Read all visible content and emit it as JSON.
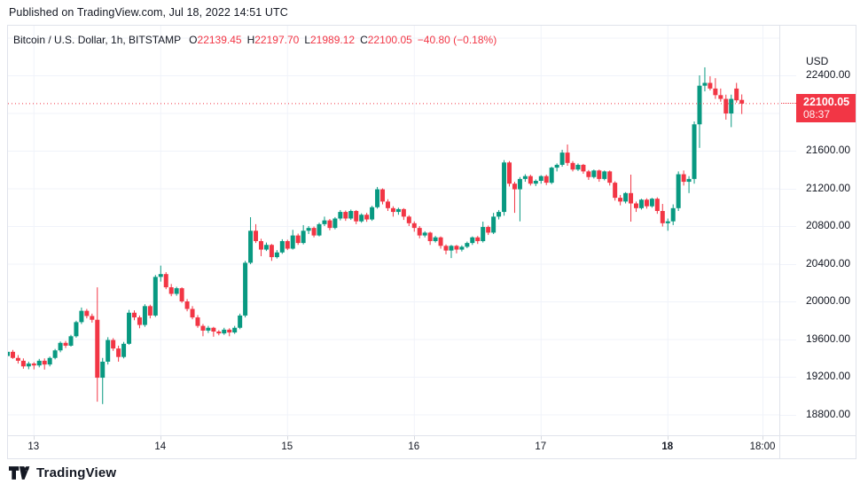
{
  "published_bar": {
    "text": "Published on TradingView.com, Jul 18, 2022 14:51 UTC"
  },
  "legend": {
    "symbol_title": "Bitcoin / U.S. Dollar, 1h, BITSTAMP",
    "o_label": "O",
    "o_value": "22139.45",
    "h_label": "H",
    "h_value": "22197.70",
    "l_label": "L",
    "l_value": "21989.12",
    "c_label": "C",
    "c_value": "22100.05",
    "change": "−40.80 (−0.18%)"
  },
  "price_axis": {
    "currency_label": "USD",
    "tick_labels": [
      "22400.00",
      "21600.00",
      "21200.00",
      "20800.00",
      "20400.00",
      "20000.00",
      "19600.00",
      "19200.00",
      "18800.00"
    ],
    "tick_prices": [
      22400,
      21600,
      21200,
      20800,
      20400,
      20000,
      19600,
      19200,
      18800
    ],
    "badge": {
      "price": "22100.05",
      "countdown": "08:37",
      "value": 22100.05
    }
  },
  "time_axis": {
    "ticks": [
      {
        "label": "13",
        "index": 5,
        "bold": false
      },
      {
        "label": "14",
        "index": 29,
        "bold": false
      },
      {
        "label": "15",
        "index": 53,
        "bold": false
      },
      {
        "label": "16",
        "index": 77,
        "bold": false
      },
      {
        "label": "17",
        "index": 101,
        "bold": false
      },
      {
        "label": "18",
        "index": 125,
        "bold": true
      },
      {
        "label": "18:00",
        "index": 143,
        "bold": false
      }
    ]
  },
  "logo": {
    "text": "TradingView"
  },
  "colors": {
    "up": "#089981",
    "down": "#f23645",
    "grid": "#f0f3fa",
    "border": "#e0e3eb",
    "text": "#131722",
    "badge_bg": "#f23645",
    "price_line": "#f23645"
  },
  "chart_data": {
    "type": "candlestick",
    "title": "Bitcoin / U.S. Dollar",
    "interval": "1h",
    "exchange": "BITSTAMP",
    "currency": "USD",
    "x_start": "Jul 12 2022 19:00 UTC",
    "x_end": "Jul 18 2022 14:00 UTC",
    "ylim": [
      18589,
      22930
    ],
    "grid_prices": [
      22800,
      22400,
      22000,
      21600,
      21200,
      20800,
      20400,
      20000,
      19600,
      19200,
      18800
    ],
    "last_price": 22100.05,
    "candles": [
      [
        19420,
        19480,
        19390,
        19465
      ],
      [
        19465,
        19485,
        19390,
        19400
      ],
      [
        19400,
        19430,
        19340,
        19370
      ],
      [
        19370,
        19395,
        19285,
        19310
      ],
      [
        19310,
        19360,
        19280,
        19340
      ],
      [
        19340,
        19355,
        19278,
        19320
      ],
      [
        19320,
        19390,
        19300,
        19370
      ],
      [
        19370,
        19395,
        19276,
        19330
      ],
      [
        19330,
        19415,
        19310,
        19400
      ],
      [
        19400,
        19495,
        19385,
        19480
      ],
      [
        19480,
        19575,
        19460,
        19560
      ],
      [
        19560,
        19580,
        19505,
        19530
      ],
      [
        19530,
        19645,
        19520,
        19630
      ],
      [
        19630,
        19795,
        19615,
        19780
      ],
      [
        19780,
        19935,
        19760,
        19900
      ],
      [
        19900,
        19920,
        19820,
        19845
      ],
      [
        19845,
        19870,
        19775,
        19805
      ],
      [
        19805,
        20150,
        18935,
        19190
      ],
      [
        19190,
        19400,
        18910,
        19360
      ],
      [
        19360,
        19620,
        19330,
        19590
      ],
      [
        19590,
        19610,
        19475,
        19500
      ],
      [
        19500,
        19530,
        19360,
        19410
      ],
      [
        19410,
        19570,
        19395,
        19550
      ],
      [
        19550,
        19910,
        19540,
        19880
      ],
      [
        19880,
        19905,
        19800,
        19830
      ],
      [
        19830,
        19850,
        19715,
        19750
      ],
      [
        19750,
        19970,
        19730,
        19950
      ],
      [
        19950,
        19965,
        19820,
        19850
      ],
      [
        19850,
        20280,
        19835,
        20260
      ],
      [
        20260,
        20380,
        20210,
        20290
      ],
      [
        20290,
        20310,
        20130,
        20150
      ],
      [
        20150,
        20185,
        20055,
        20080
      ],
      [
        20080,
        20155,
        20060,
        20140
      ],
      [
        20140,
        20150,
        19985,
        20000
      ],
      [
        20000,
        20025,
        19895,
        19920
      ],
      [
        19920,
        19950,
        19810,
        19830
      ],
      [
        19830,
        19855,
        19720,
        19740
      ],
      [
        19740,
        19760,
        19630,
        19690
      ],
      [
        19690,
        19740,
        19665,
        19720
      ],
      [
        19720,
        19730,
        19625,
        19680
      ],
      [
        19680,
        19695,
        19640,
        19660
      ],
      [
        19660,
        19720,
        19645,
        19700
      ],
      [
        19700,
        19715,
        19630,
        19670
      ],
      [
        19670,
        19740,
        19655,
        19720
      ],
      [
        19720,
        19870,
        19705,
        19850
      ],
      [
        19850,
        20430,
        19830,
        20410
      ],
      [
        20410,
        20894,
        20395,
        20750
      ],
      [
        20750,
        20820,
        20620,
        20640
      ],
      [
        20640,
        20665,
        20480,
        20550
      ],
      [
        20550,
        20625,
        20535,
        20600
      ],
      [
        20600,
        20610,
        20430,
        20470
      ],
      [
        20470,
        20545,
        20455,
        20520
      ],
      [
        20520,
        20660,
        20505,
        20640
      ],
      [
        20640,
        20655,
        20545,
        20560
      ],
      [
        20560,
        20760,
        20550,
        20700
      ],
      [
        20700,
        20720,
        20600,
        20620
      ],
      [
        20620,
        20810,
        20605,
        20750
      ],
      [
        20750,
        20800,
        20715,
        20780
      ],
      [
        20780,
        20795,
        20680,
        20700
      ],
      [
        20700,
        20835,
        20690,
        20820
      ],
      [
        20820,
        20900,
        20800,
        20860
      ],
      [
        20860,
        20875,
        20755,
        20780
      ],
      [
        20780,
        20895,
        20765,
        20880
      ],
      [
        20880,
        20970,
        20860,
        20950
      ],
      [
        20950,
        20965,
        20855,
        20880
      ],
      [
        20880,
        20975,
        20865,
        20960
      ],
      [
        20960,
        20970,
        20820,
        20850
      ],
      [
        20850,
        20935,
        20835,
        20920
      ],
      [
        20920,
        20940,
        20845,
        20870
      ],
      [
        20870,
        21015,
        20855,
        21000
      ],
      [
        21000,
        21215,
        20985,
        21190
      ],
      [
        21190,
        21200,
        21030,
        21060
      ],
      [
        21060,
        21085,
        20960,
        20990
      ],
      [
        20990,
        21010,
        20900,
        20950
      ],
      [
        20950,
        20995,
        20920,
        20980
      ],
      [
        20980,
        20990,
        20865,
        20900
      ],
      [
        20900,
        20915,
        20800,
        20830
      ],
      [
        20830,
        20850,
        20740,
        20780
      ],
      [
        20780,
        20800,
        20670,
        20700
      ],
      [
        20700,
        20745,
        20680,
        20730
      ],
      [
        20730,
        20740,
        20600,
        20640
      ],
      [
        20640,
        20695,
        20625,
        20680
      ],
      [
        20680,
        20690,
        20560,
        20590
      ],
      [
        20590,
        20605,
        20500,
        20540
      ],
      [
        20540,
        20600,
        20460,
        20590
      ],
      [
        20590,
        20600,
        20510,
        20550
      ],
      [
        20550,
        20595,
        20530,
        20580
      ],
      [
        20580,
        20635,
        20565,
        20620
      ],
      [
        20620,
        20690,
        20600,
        20680
      ],
      [
        20680,
        20695,
        20610,
        20640
      ],
      [
        20640,
        20847,
        20625,
        20790
      ],
      [
        20790,
        20805,
        20705,
        20730
      ],
      [
        20730,
        20940,
        20715,
        20900
      ],
      [
        20900,
        20970,
        20870,
        20950
      ],
      [
        20950,
        21500,
        20910,
        21475
      ],
      [
        21475,
        21490,
        21220,
        21250
      ],
      [
        21250,
        21270,
        20940,
        21190
      ],
      [
        21190,
        21320,
        20850,
        21300
      ],
      [
        21300,
        21350,
        21270,
        21330
      ],
      [
        21330,
        21345,
        21230,
        21250
      ],
      [
        21250,
        21295,
        21225,
        21280
      ],
      [
        21280,
        21340,
        21250,
        21330
      ],
      [
        21330,
        21345,
        21235,
        21260
      ],
      [
        21260,
        21430,
        21245,
        21420
      ],
      [
        21420,
        21465,
        21380,
        21450
      ],
      [
        21450,
        21610,
        21430,
        21580
      ],
      [
        21580,
        21666,
        21440,
        21470
      ],
      [
        21470,
        21490,
        21380,
        21400
      ],
      [
        21400,
        21465,
        21385,
        21450
      ],
      [
        21450,
        21460,
        21355,
        21380
      ],
      [
        21380,
        21395,
        21290,
        21320
      ],
      [
        21320,
        21400,
        21305,
        21390
      ],
      [
        21390,
        21400,
        21270,
        21300
      ],
      [
        21300,
        21390,
        21285,
        21380
      ],
      [
        21380,
        21390,
        21230,
        21260
      ],
      [
        21260,
        21275,
        21070,
        21100
      ],
      [
        21100,
        21130,
        21020,
        21060
      ],
      [
        21060,
        21160,
        21040,
        21150
      ],
      [
        21150,
        21346,
        20847,
        21040
      ],
      [
        21040,
        21060,
        20950,
        20990
      ],
      [
        20990,
        21090,
        20975,
        21080
      ],
      [
        21080,
        21095,
        20985,
        21010
      ],
      [
        21010,
        21100,
        20995,
        21090
      ],
      [
        21090,
        21105,
        20930,
        20960
      ],
      [
        20960,
        21035,
        20795,
        20830
      ],
      [
        20830,
        20880,
        20750,
        20850
      ],
      [
        20850,
        21030,
        20810,
        20990
      ],
      [
        20990,
        21380,
        20960,
        21350
      ],
      [
        21350,
        21390,
        21230,
        21270
      ],
      [
        21270,
        21330,
        21150,
        21300
      ],
      [
        21300,
        21910,
        21250,
        21880
      ],
      [
        21880,
        22400,
        21630,
        22290
      ],
      [
        22290,
        22485,
        22230,
        22320
      ],
      [
        22320,
        22390,
        22240,
        22260
      ],
      [
        22260,
        22370,
        22150,
        22190
      ],
      [
        22190,
        22260,
        22120,
        22150
      ],
      [
        22150,
        22195,
        21930,
        21995
      ],
      [
        21995,
        22195,
        21850,
        22150
      ],
      [
        22260,
        22320,
        22110,
        22135
      ],
      [
        22139.45,
        22197.7,
        21989.12,
        22100.05
      ]
    ]
  }
}
